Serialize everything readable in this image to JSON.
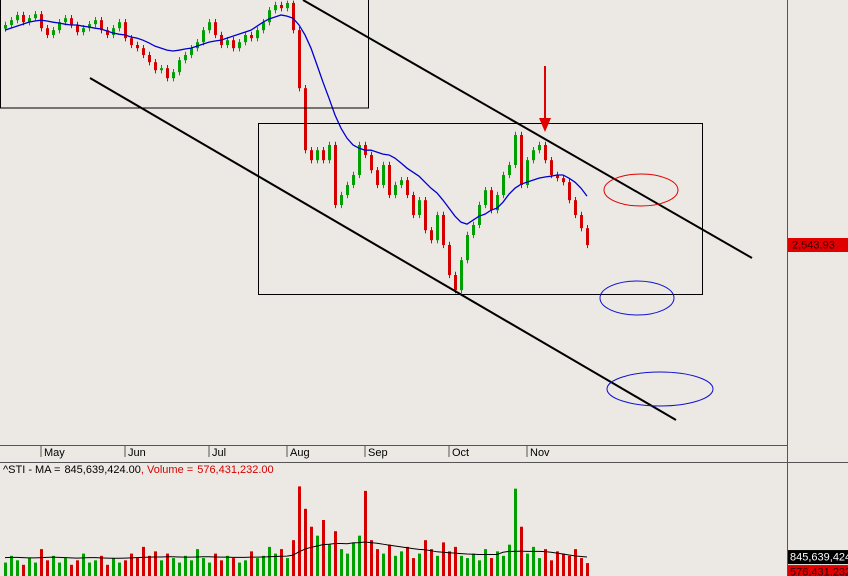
{
  "chart_data": {
    "type": "candlestick",
    "categories": [
      null,
      null,
      null,
      null,
      null,
      null,
      "May",
      null,
      null,
      null,
      null,
      null,
      null,
      null,
      null,
      null,
      null,
      null,
      null,
      null,
      "Jun",
      null,
      null,
      null,
      null,
      null,
      null,
      null,
      null,
      null,
      null,
      null,
      null,
      null,
      "Jul",
      null,
      null,
      null,
      null,
      null,
      null,
      null,
      null,
      null,
      null,
      null,
      null,
      "Aug",
      null,
      null,
      null,
      null,
      null,
      null,
      null,
      null,
      null,
      null,
      null,
      null,
      "Sep",
      null,
      null,
      null,
      null,
      null,
      null,
      null,
      null,
      null,
      null,
      null,
      null,
      null,
      "Oct",
      null,
      null,
      null,
      null,
      null,
      null,
      null,
      null,
      null,
      null,
      null,
      null,
      "Nov",
      null,
      null,
      null,
      null,
      null,
      null,
      null,
      null,
      null,
      null
    ],
    "open": [
      3085,
      3094,
      3106,
      3119,
      3101,
      3111,
      3121,
      3086,
      3069,
      3081,
      3101,
      3111,
      3094,
      3076,
      3086,
      3096,
      3106,
      3081,
      3069,
      3086,
      3101,
      3061,
      3044,
      3036,
      3019,
      3001,
      2981,
      2986,
      2961,
      2976,
      3006,
      3019,
      3036,
      3051,
      3081,
      3101,
      3069,
      3044,
      3056,
      3036,
      3051,
      3069,
      3061,
      3081,
      3101,
      3131,
      3144,
      3136,
      3149,
      3081,
      2936,
      2781,
      2756,
      2781,
      2756,
      2794,
      2644,
      2669,
      2694,
      2719,
      2794,
      2769,
      2731,
      2694,
      2744,
      2669,
      2694,
      2706,
      2669,
      2619,
      2656,
      2581,
      2556,
      2619,
      2544,
      2469,
      2431,
      2506,
      2569,
      2594,
      2644,
      2681,
      2631,
      2669,
      2719,
      2744,
      2819,
      2694,
      2756,
      2781,
      2794,
      2756,
      2719,
      2711,
      2701,
      2656,
      2619,
      2586
    ],
    "high": [
      3102,
      3114,
      3127,
      3127,
      3119,
      3129,
      3129,
      3094,
      3089,
      3109,
      3119,
      3119,
      3102,
      3094,
      3104,
      3114,
      3114,
      3089,
      3094,
      3109,
      3109,
      3069,
      3052,
      3044,
      3027,
      3009,
      2994,
      2994,
      2984,
      3014,
      3027,
      3044,
      3059,
      3089,
      3109,
      3109,
      3077,
      3064,
      3064,
      3059,
      3077,
      3077,
      3089,
      3109,
      3139,
      3152,
      3152,
      3155,
      3155,
      3089,
      2944,
      2789,
      2789,
      2789,
      2802,
      2802,
      2677,
      2702,
      2727,
      2802,
      2802,
      2777,
      2739,
      2752,
      2752,
      2702,
      2714,
      2714,
      2677,
      2664,
      2664,
      2589,
      2627,
      2627,
      2552,
      2477,
      2514,
      2577,
      2602,
      2652,
      2689,
      2689,
      2677,
      2727,
      2752,
      2827,
      2827,
      2764,
      2789,
      2802,
      2802,
      2764,
      2727,
      2719,
      2709,
      2664,
      2627,
      2594
    ],
    "low": [
      3077,
      3086,
      3098,
      3093,
      3093,
      3103,
      3078,
      3061,
      3061,
      3073,
      3093,
      3086,
      3068,
      3068,
      3078,
      3088,
      3073,
      3061,
      3061,
      3078,
      3053,
      3036,
      3028,
      3011,
      2993,
      2973,
      2973,
      2953,
      2953,
      2968,
      2998,
      3011,
      3028,
      3043,
      3073,
      3061,
      3036,
      3036,
      3028,
      3028,
      3043,
      3053,
      3053,
      3073,
      3093,
      3123,
      3128,
      3128,
      3073,
      2928,
      2773,
      2748,
      2748,
      2748,
      2748,
      2636,
      2636,
      2661,
      2686,
      2711,
      2761,
      2723,
      2686,
      2686,
      2661,
      2661,
      2686,
      2661,
      2611,
      2611,
      2573,
      2548,
      2548,
      2536,
      2461,
      2423,
      2423,
      2498,
      2561,
      2586,
      2636,
      2623,
      2623,
      2661,
      2711,
      2736,
      2686,
      2686,
      2748,
      2773,
      2748,
      2711,
      2703,
      2693,
      2648,
      2611,
      2578,
      2536
    ],
    "close": [
      3094,
      3106,
      3119,
      3101,
      3111,
      3121,
      3086,
      3069,
      3081,
      3101,
      3111,
      3094,
      3076,
      3086,
      3096,
      3106,
      3081,
      3069,
      3086,
      3101,
      3061,
      3044,
      3036,
      3019,
      3001,
      2981,
      2986,
      2961,
      2976,
      3006,
      3019,
      3036,
      3051,
      3081,
      3101,
      3069,
      3044,
      3056,
      3036,
      3051,
      3069,
      3061,
      3081,
      3101,
      3131,
      3144,
      3136,
      3149,
      3081,
      2936,
      2781,
      2756,
      2781,
      2756,
      2794,
      2644,
      2669,
      2694,
      2719,
      2794,
      2769,
      2731,
      2694,
      2744,
      2669,
      2694,
      2706,
      2669,
      2619,
      2656,
      2581,
      2556,
      2619,
      2544,
      2469,
      2431,
      2506,
      2569,
      2594,
      2644,
      2681,
      2631,
      2669,
      2719,
      2744,
      2819,
      2694,
      2756,
      2781,
      2794,
      2756,
      2719,
      2711,
      2701,
      2656,
      2619,
      2586,
      2543.93
    ],
    "ylim": [
      2043.93,
      3156.43
    ],
    "colors": {
      "up": "#00a000",
      "down": "#d40000"
    },
    "ma": {
      "color": "#0000d0",
      "values": [
        3081,
        3086,
        3091,
        3096,
        3101,
        3104,
        3106,
        3104,
        3101,
        3099,
        3096,
        3094,
        3094,
        3091,
        3089,
        3086,
        3084,
        3079,
        3074,
        3071,
        3069,
        3064,
        3061,
        3056,
        3049,
        3041,
        3036,
        3031,
        3029,
        3031,
        3034,
        3036,
        3041,
        3046,
        3051,
        3054,
        3056,
        3061,
        3066,
        3071,
        3076,
        3081,
        3091,
        3101,
        3109,
        3114,
        3119,
        3116,
        3111,
        3094,
        3069,
        3036,
        2994,
        2951,
        2911,
        2869,
        2836,
        2811,
        2794,
        2786,
        2781,
        2781,
        2776,
        2771,
        2769,
        2761,
        2749,
        2736,
        2726,
        2716,
        2701,
        2686,
        2674,
        2656,
        2636,
        2616,
        2601,
        2596,
        2606,
        2616,
        2621,
        2631,
        2636,
        2651,
        2671,
        2686,
        2696,
        2701,
        2706,
        2711,
        2714,
        2716,
        2719,
        2719,
        2711,
        2701,
        2686,
        2666
      ]
    },
    "last_price_label": "2,543.93",
    "volume": {
      "ylim": [
        0,
        5000000000.0
      ],
      "values": [
        600000000.0,
        900000000.0,
        700000000.0,
        500000000.0,
        800000000.0,
        600000000.0,
        1200000000.0,
        700000000.0,
        900000000.0,
        600000000.0,
        800000000.0,
        500000000.0,
        700000000.0,
        1000000000.0,
        600000000.0,
        700000000.0,
        900000000.0,
        500000000.0,
        800000000.0,
        600000000.0,
        700000000.0,
        1000000000.0,
        800000000.0,
        1300000000.0,
        900000000.0,
        1100000000.0,
        700000000.0,
        1000000000.0,
        800000000.0,
        600000000.0,
        900000000.0,
        700000000.0,
        1200000000.0,
        800000000.0,
        600000000.0,
        1000000000.0,
        700000000.0,
        900000000.0,
        800000000.0,
        600000000.0,
        700000000.0,
        1100000000.0,
        800000000.0,
        900000000.0,
        1300000000.0,
        1000000000.0,
        1200000000.0,
        800000000.0,
        1600000000.0,
        4000000000.0,
        3000000000.0,
        2200000000.0,
        1800000000.0,
        2500000000.0,
        1400000000.0,
        2000000000.0,
        1200000000.0,
        1000000000.0,
        1500000000.0,
        1800000000.0,
        3800000000.0,
        1600000000.0,
        1200000000.0,
        1000000000.0,
        1400000000.0,
        900000000.0,
        1100000000.0,
        1300000000.0,
        800000000.0,
        1000000000.0,
        1600000000.0,
        1200000000.0,
        900000000.0,
        1500000000.0,
        1100000000.0,
        1300000000.0,
        900000000.0,
        800000000.0,
        1000000000.0,
        700000000.0,
        1200000000.0,
        800000000.0,
        1100000000.0,
        900000000.0,
        1400000000.0,
        3900000000.0,
        2200000000.0,
        1000000000.0,
        1300000000.0,
        800000000.0,
        1200000000.0,
        700000000.0,
        1100000000.0,
        1000000000.0,
        900000000.0,
        1200000000.0,
        800000000.0,
        576431232.0
      ],
      "ma_values": [
        820000000.0,
        830000000.0,
        830000000.0,
        820000000.0,
        810000000.0,
        810000000.0,
        820000000.0,
        830000000.0,
        840000000.0,
        830000000.0,
        820000000.0,
        810000000.0,
        800000000.0,
        810000000.0,
        820000000.0,
        820000000.0,
        810000000.0,
        800000000.0,
        790000000.0,
        790000000.0,
        800000000.0,
        810000000.0,
        820000000.0,
        830000000.0,
        840000000.0,
        850000000.0,
        850000000.0,
        860000000.0,
        860000000.0,
        850000000.0,
        840000000.0,
        840000000.0,
        850000000.0,
        860000000.0,
        860000000.0,
        850000000.0,
        840000000.0,
        840000000.0,
        830000000.0,
        830000000.0,
        830000000.0,
        840000000.0,
        840000000.0,
        850000000.0,
        860000000.0,
        870000000.0,
        880000000.0,
        890000000.0,
        930000000.0,
        1080000000.0,
        1200000000.0,
        1280000000.0,
        1340000000.0,
        1400000000.0,
        1420000000.0,
        1450000000.0,
        1450000000.0,
        1440000000.0,
        1480000000.0,
        1490000000.0,
        1520000000.0,
        1490000000.0,
        1460000000.0,
        1420000000.0,
        1380000000.0,
        1340000000.0,
        1300000000.0,
        1260000000.0,
        1220000000.0,
        1190000000.0,
        1170000000.0,
        1130000000.0,
        1080000000.0,
        1060000000.0,
        1040000000.0,
        1020000000.0,
        1000000000.0,
        980000000.0,
        970000000.0,
        960000000.0,
        960000000.0,
        960000000.0,
        960000000.0,
        1060000000.0,
        1100000000.0,
        1100000000.0,
        1110000000.0,
        1100000000.0,
        1100000000.0,
        1100000000.0,
        1090000000.0,
        1060000000.0,
        1020000000.0,
        980000000.0,
        940000000.0,
        900000000.0,
        870000000.0,
        845639424.0
      ],
      "ma_color": "#000000",
      "ma_caption": "^STI - MA =",
      "ma_value_label": "845,639,424.00",
      "volume_caption": ", Volume =",
      "volume_value_label": "576,431,232.00"
    }
  }
}
